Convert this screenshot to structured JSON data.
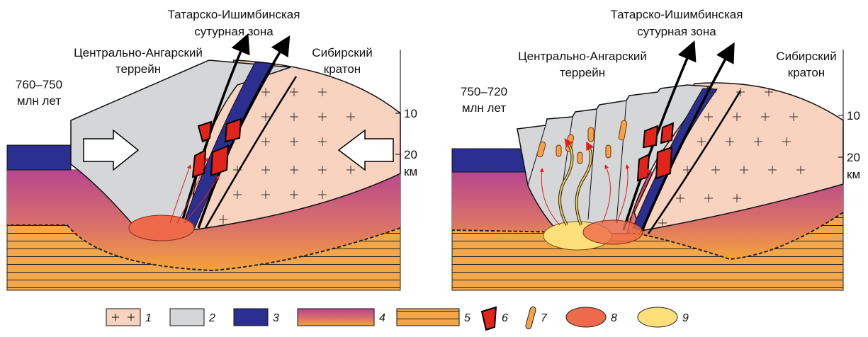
{
  "panels": [
    {
      "suture_zone": [
        "Татарско-Ишимбинская",
        "сутурная зона"
      ],
      "terrane": [
        "Центрально-Ангарский",
        "террейн"
      ],
      "craton": [
        "Сибирский",
        "кратон"
      ],
      "age": [
        "760–750",
        "млн лет"
      ],
      "depth_ticks": [
        "10",
        "20"
      ],
      "depth_unit": "км"
    },
    {
      "suture_zone": [
        "Татарско-Ишимбинская",
        "сутурная зона"
      ],
      "terrane": [
        "Центрально-Ангарский",
        "террейн"
      ],
      "craton": [
        "Сибирский",
        "кратон"
      ],
      "age": [
        "750–720",
        "млн лет"
      ],
      "depth_ticks": [
        "10",
        "20"
      ],
      "depth_unit": "км"
    }
  ],
  "legend": [
    "1",
    "2",
    "3",
    "4",
    "5",
    "6",
    "7",
    "8",
    "9"
  ]
}
